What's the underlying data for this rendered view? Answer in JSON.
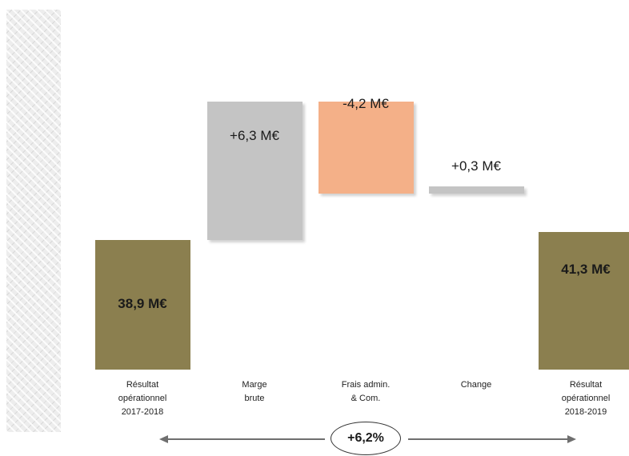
{
  "chart_data": {
    "type": "waterfall",
    "categories": [
      [
        "Résultat",
        "opérationnel",
        "2017-2018"
      ],
      [
        "Marge",
        "brute"
      ],
      [
        "Frais admin.",
        "& Com."
      ],
      [
        "Change"
      ],
      [
        "Résultat",
        "opérationnel",
        "2018-2019"
      ]
    ],
    "values": [
      38.9,
      6.3,
      -4.2,
      0.3,
      41.3
    ],
    "value_labels": [
      "38,9 M€",
      "+6,3 M€",
      "-4,2 M€",
      "+0,3 M€",
      "41,3 M€"
    ],
    "kinds": [
      "total",
      "increase",
      "decrease",
      "increase",
      "total"
    ],
    "colors": [
      "#8b7f4f",
      "#c4c4c4",
      "#f4b088",
      "#c4c4c4",
      "#8b7f4f"
    ],
    "growth_label": "+6,2%",
    "unit": "M€"
  }
}
